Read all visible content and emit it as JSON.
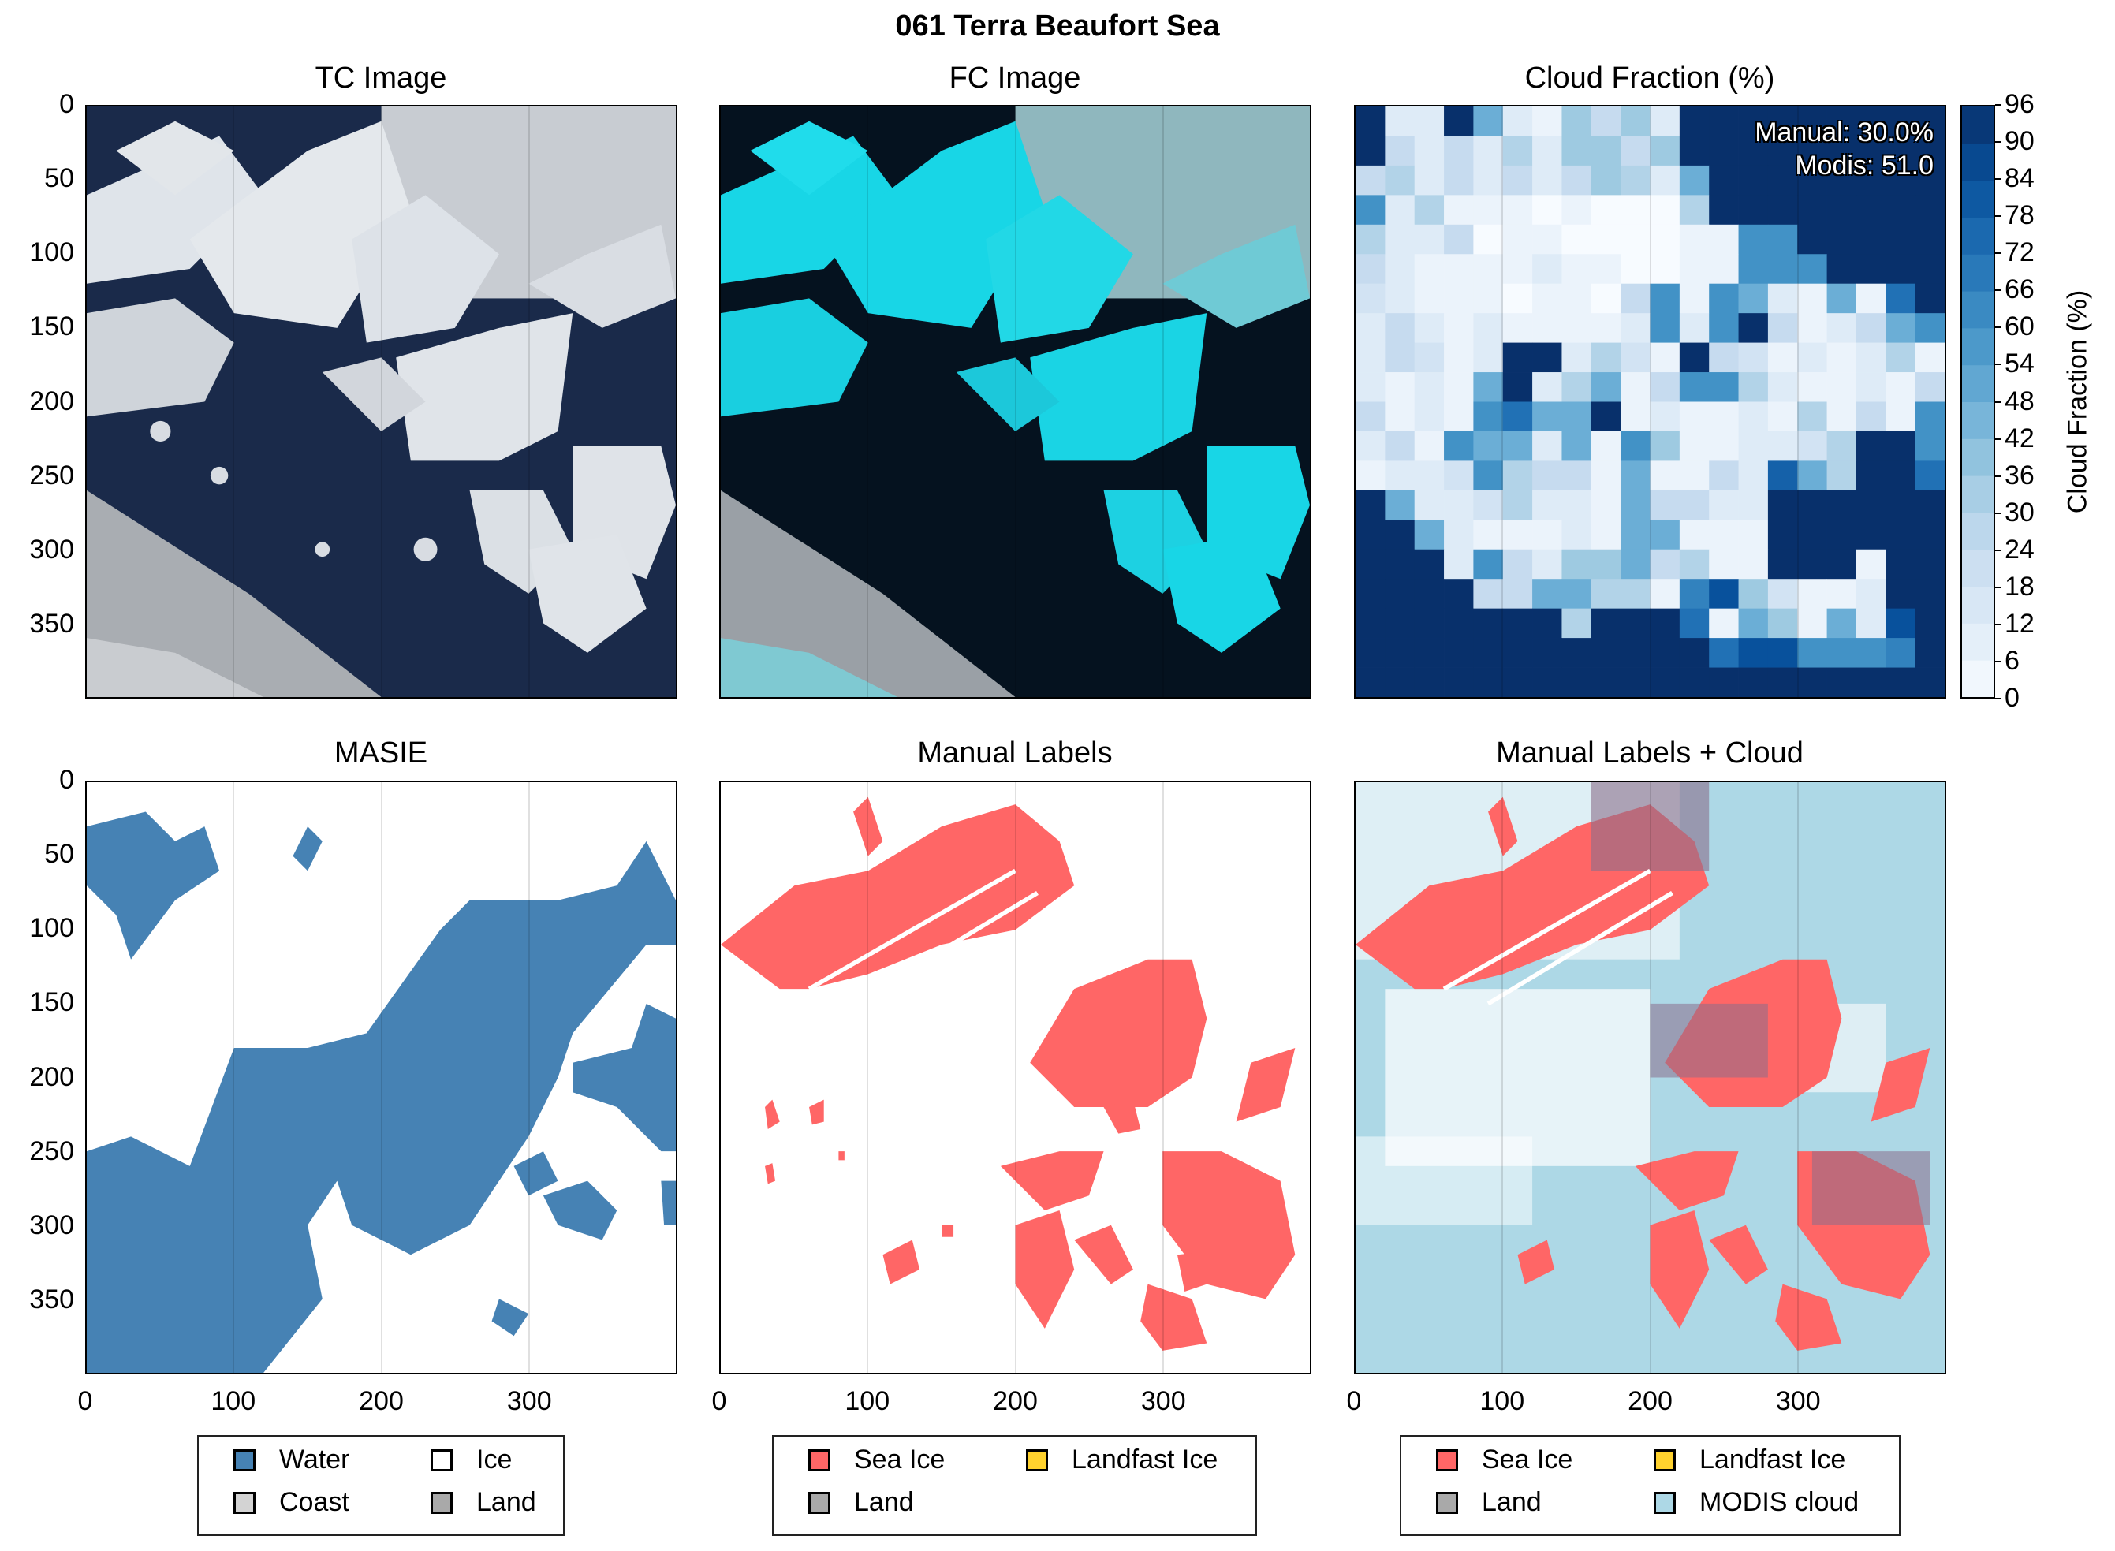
{
  "figure": {
    "suptitle": "061 Terra Beaufort Sea"
  },
  "chart_data": [
    {
      "type": "image",
      "title": "TC Image",
      "xlim": [
        0,
        400
      ],
      "ylim": [
        400,
        0
      ],
      "xticks": [],
      "yticks": [
        0,
        50,
        100,
        150,
        200,
        250,
        300,
        350
      ],
      "colors": {
        "water": "#1a2a4a",
        "ice": "#dfe4ea",
        "haze": "#b8bcc2"
      }
    },
    {
      "type": "image",
      "title": "FC Image",
      "xlim": [
        0,
        400
      ],
      "ylim": [
        400,
        0
      ],
      "colors": {
        "water": "#05121f",
        "ice": "#18d6e6",
        "haze": "#9aa0a6"
      }
    },
    {
      "type": "heatmap",
      "title": "Cloud Fraction (%)",
      "xlim": [
        0,
        400
      ],
      "ylim": [
        400,
        0
      ],
      "grid_size": [
        20,
        20
      ],
      "colorbar": {
        "label": "Cloud Fraction (%)",
        "range": [
          0,
          96
        ],
        "ticks": [
          0,
          6,
          12,
          18,
          24,
          30,
          36,
          42,
          48,
          54,
          60,
          66,
          72,
          78,
          84,
          90,
          96
        ]
      },
      "annotations": [
        "Manual: 30.0%",
        "Modis: 51.0"
      ],
      "values": [
        [
          96,
          12,
          12,
          96,
          48,
          12,
          6,
          36,
          24,
          36,
          12,
          96,
          96,
          96,
          96,
          96,
          96,
          96,
          96,
          96
        ],
        [
          96,
          24,
          12,
          24,
          12,
          30,
          12,
          36,
          36,
          24,
          36,
          96,
          96,
          96,
          96,
          96,
          96,
          96,
          96,
          96
        ],
        [
          24,
          30,
          12,
          24,
          12,
          24,
          12,
          24,
          36,
          30,
          12,
          48,
          96,
          96,
          96,
          96,
          96,
          96,
          96,
          96
        ],
        [
          60,
          12,
          30,
          6,
          6,
          6,
          0,
          6,
          0,
          0,
          0,
          30,
          96,
          96,
          96,
          96,
          96,
          96,
          96,
          96
        ],
        [
          30,
          12,
          12,
          24,
          0,
          6,
          6,
          0,
          0,
          0,
          0,
          6,
          6,
          60,
          60,
          96,
          96,
          96,
          96,
          96
        ],
        [
          24,
          12,
          6,
          6,
          6,
          6,
          12,
          6,
          6,
          0,
          0,
          6,
          6,
          60,
          60,
          60,
          96,
          96,
          96,
          96
        ],
        [
          18,
          12,
          6,
          6,
          6,
          0,
          6,
          6,
          0,
          24,
          60,
          6,
          60,
          48,
          12,
          6,
          48,
          6,
          72,
          96
        ],
        [
          12,
          24,
          12,
          6,
          12,
          6,
          6,
          6,
          6,
          12,
          60,
          12,
          60,
          96,
          24,
          6,
          12,
          24,
          48,
          60
        ],
        [
          12,
          24,
          18,
          6,
          12,
          96,
          96,
          12,
          30,
          18,
          6,
          96,
          24,
          18,
          6,
          12,
          6,
          12,
          30,
          6
        ],
        [
          12,
          6,
          12,
          6,
          48,
          96,
          12,
          30,
          48,
          6,
          24,
          60,
          60,
          30,
          12,
          6,
          6,
          12,
          6,
          24
        ],
        [
          24,
          6,
          12,
          6,
          60,
          72,
          48,
          48,
          96,
          6,
          12,
          6,
          6,
          12,
          6,
          30,
          6,
          24,
          6,
          60
        ],
        [
          12,
          24,
          6,
          60,
          48,
          48,
          12,
          48,
          6,
          60,
          36,
          6,
          6,
          12,
          12,
          18,
          30,
          96,
          96,
          60
        ],
        [
          6,
          12,
          12,
          18,
          60,
          30,
          24,
          24,
          6,
          48,
          6,
          6,
          24,
          12,
          78,
          48,
          30,
          96,
          96,
          72
        ],
        [
          96,
          48,
          12,
          12,
          18,
          30,
          12,
          12,
          6,
          48,
          24,
          24,
          12,
          12,
          96,
          96,
          96,
          96,
          96,
          96
        ],
        [
          96,
          96,
          48,
          12,
          6,
          6,
          6,
          12,
          6,
          48,
          48,
          6,
          6,
          6,
          96,
          96,
          96,
          96,
          96,
          96
        ],
        [
          96,
          96,
          96,
          12,
          60,
          24,
          12,
          36,
          36,
          48,
          24,
          30,
          6,
          6,
          96,
          96,
          96,
          6,
          96,
          96
        ],
        [
          96,
          96,
          96,
          96,
          24,
          24,
          48,
          48,
          30,
          30,
          6,
          66,
          84,
          36,
          18,
          6,
          6,
          12,
          96,
          96
        ],
        [
          96,
          96,
          96,
          96,
          96,
          96,
          96,
          30,
          96,
          96,
          96,
          72,
          6,
          48,
          36,
          6,
          48,
          12,
          84,
          96
        ],
        [
          96,
          96,
          96,
          96,
          96,
          96,
          96,
          96,
          96,
          96,
          96,
          96,
          72,
          84,
          84,
          60,
          60,
          60,
          66,
          96
        ],
        [
          96,
          96,
          96,
          96,
          96,
          96,
          96,
          96,
          96,
          96,
          96,
          96,
          96,
          96,
          96,
          96,
          96,
          96,
          96,
          96
        ]
      ]
    },
    {
      "type": "image",
      "title": "MASIE",
      "xlim": [
        0,
        400
      ],
      "ylim": [
        400,
        0
      ],
      "xticks": [
        0,
        100,
        200,
        300
      ],
      "yticks": [
        0,
        50,
        100,
        150,
        200,
        250,
        300,
        350
      ],
      "legend": [
        {
          "label": "Water",
          "color": "#4682b4"
        },
        {
          "label": "Ice",
          "color": "#ffffff"
        },
        {
          "label": "Coast",
          "color": "#d3d3d3"
        },
        {
          "label": "Land",
          "color": "#a9a9a9"
        }
      ]
    },
    {
      "type": "image",
      "title": "Manual Labels",
      "xlim": [
        0,
        400
      ],
      "ylim": [
        400,
        0
      ],
      "xticks": [
        0,
        100,
        200,
        300
      ],
      "legend": [
        {
          "label": "Sea Ice",
          "color": "#ff6666"
        },
        {
          "label": "Landfast Ice",
          "color": "#ffd22e"
        },
        {
          "label": "Land",
          "color": "#a9a9a9"
        }
      ]
    },
    {
      "type": "image",
      "title": "Manual Labels + Cloud",
      "xlim": [
        0,
        400
      ],
      "ylim": [
        400,
        0
      ],
      "xticks": [
        0,
        100,
        200,
        300
      ],
      "legend": [
        {
          "label": "Sea Ice",
          "color": "#ff6666"
        },
        {
          "label": "Landfast Ice",
          "color": "#ffd22e"
        },
        {
          "label": "Land",
          "color": "#a9a9a9"
        },
        {
          "label": "MODIS cloud",
          "color": "#add8e6"
        }
      ]
    }
  ]
}
